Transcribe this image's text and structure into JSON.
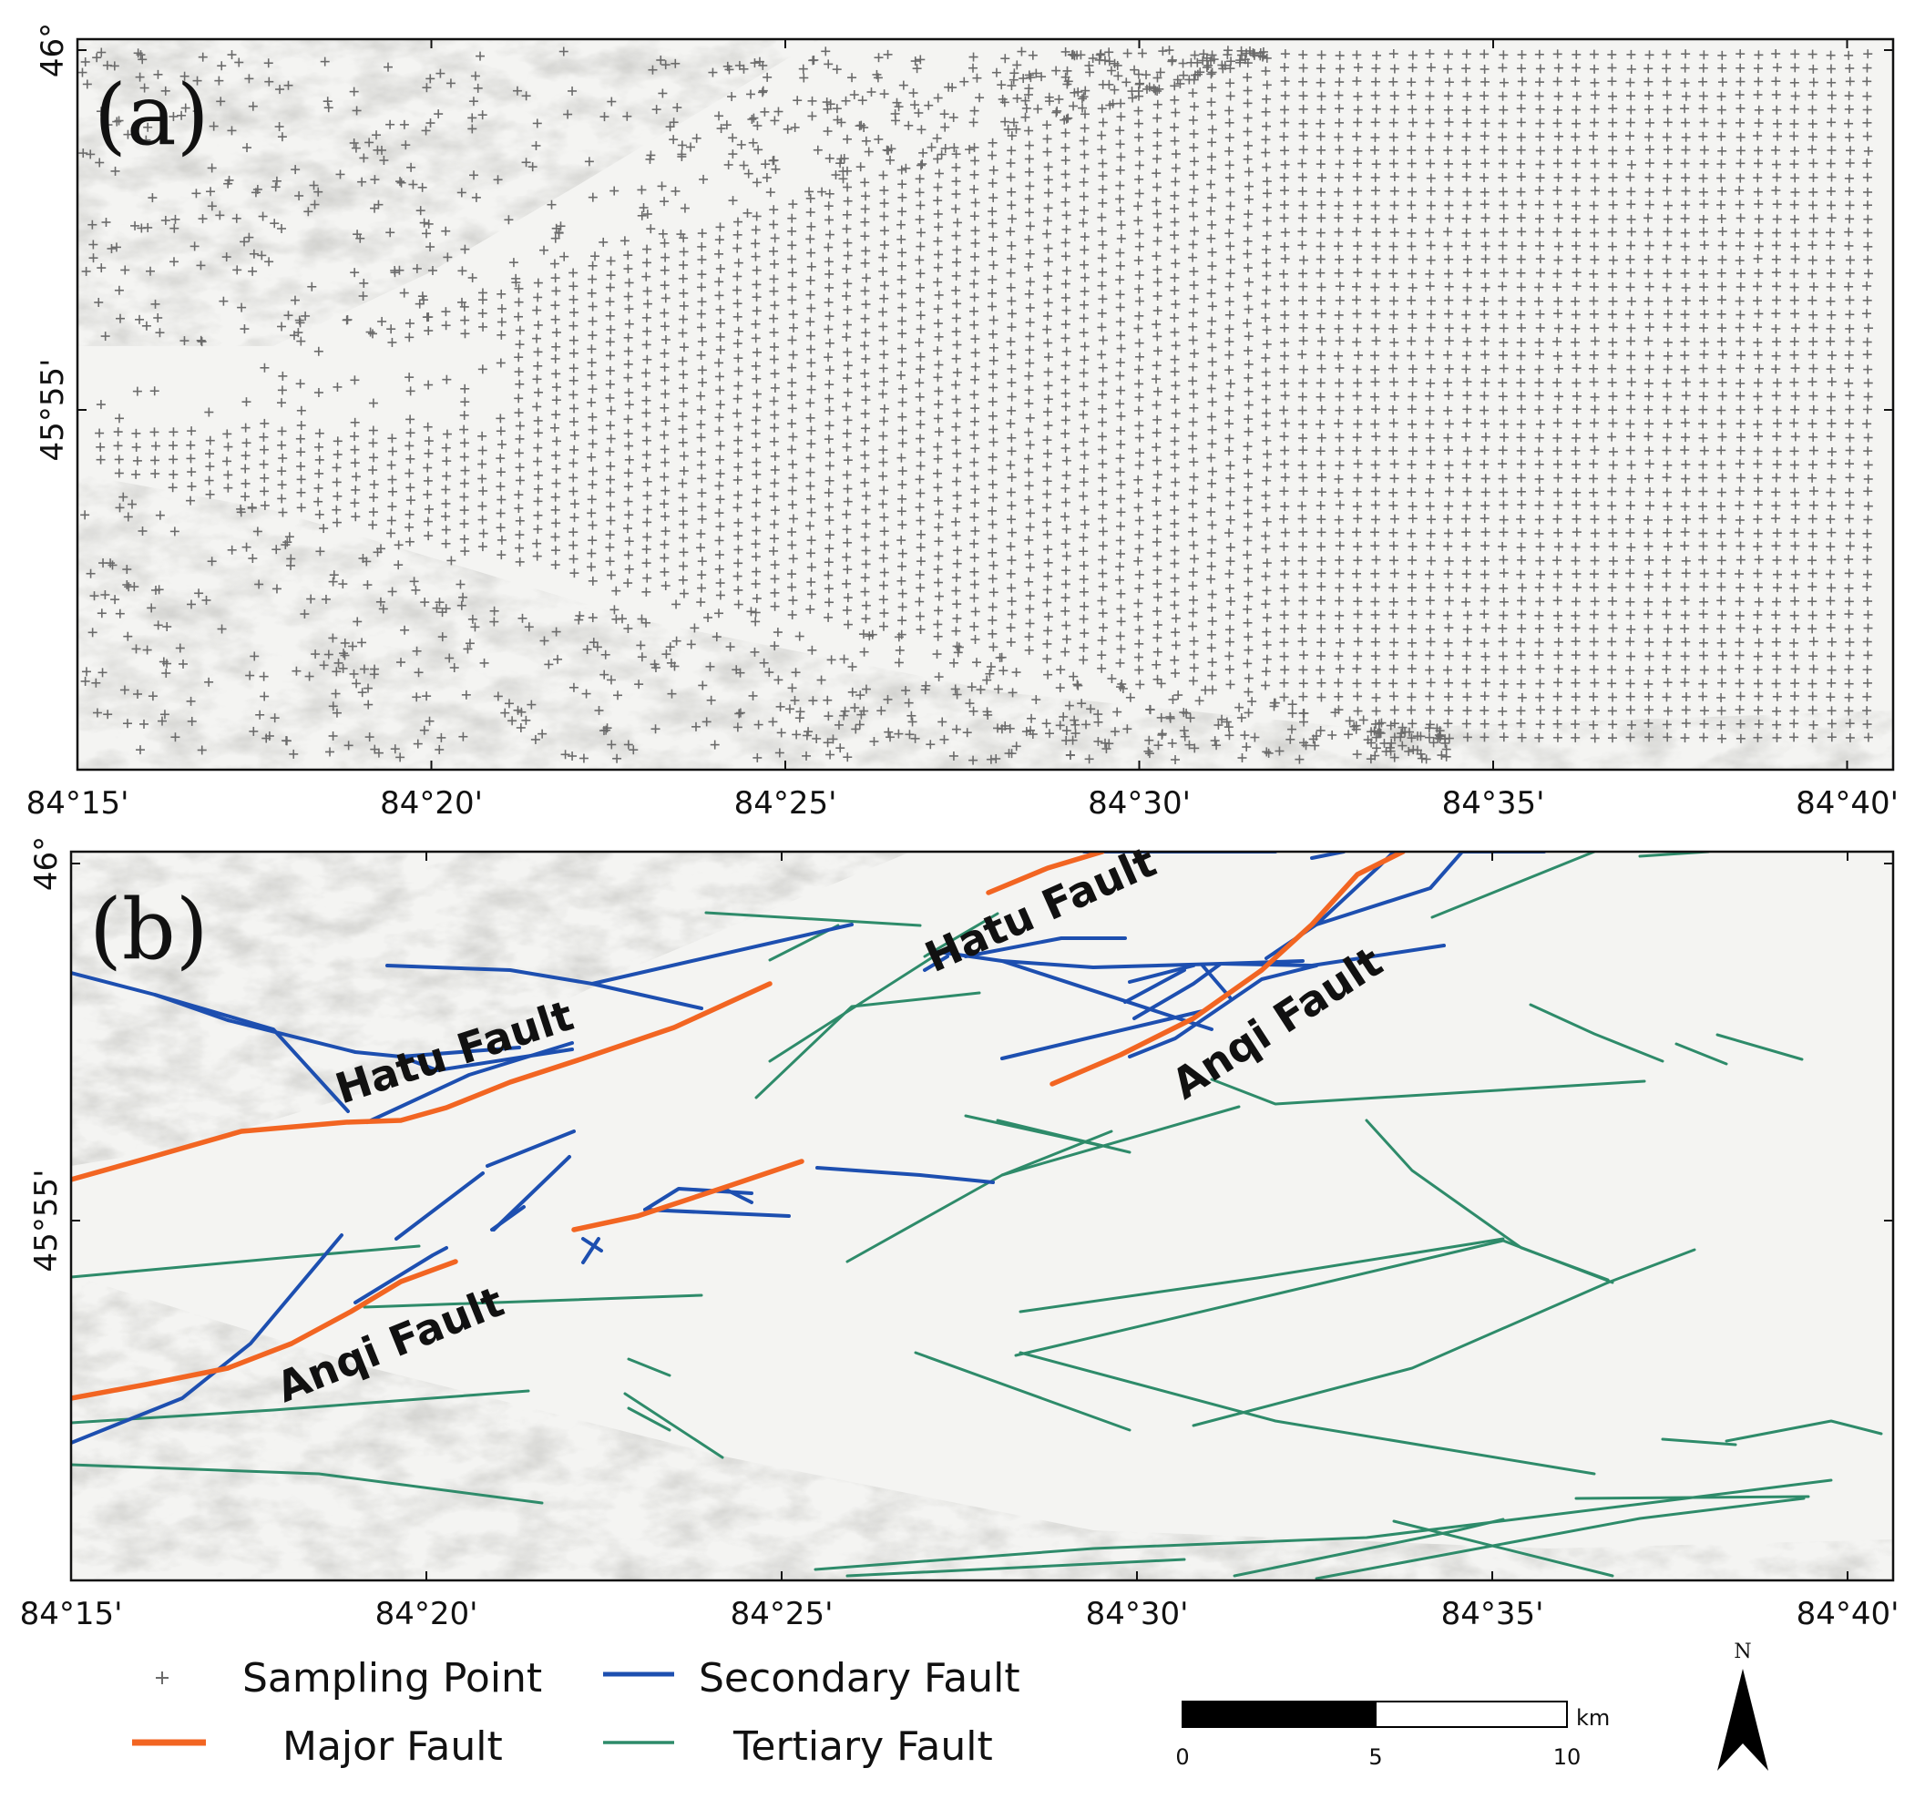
{
  "colors": {
    "major": "#F26522",
    "secondary": "#1D4FB0",
    "tertiary": "#2E8B6A",
    "sample": "#6b6b6b",
    "terrain_bg": "#f4f4f2"
  },
  "panels": [
    {
      "id": "a",
      "label": "(a)",
      "y_ticks": [
        "46°",
        "45°55'"
      ],
      "x_ticks": [
        "84°15'",
        "84°20'",
        "84°25'",
        "84°30'",
        "84°35'",
        "84°40'"
      ]
    },
    {
      "id": "b",
      "label": "(b)",
      "y_ticks": [
        "46°",
        "45°55'"
      ],
      "x_ticks": [
        "84°15'",
        "84°20'",
        "84°25'",
        "84°30'",
        "84°35'",
        "84°40'"
      ]
    }
  ],
  "fault_labels": [
    {
      "text": "Hatu Fault"
    },
    {
      "text": "Hatu Fault"
    },
    {
      "text": "Anqi Fault"
    },
    {
      "text": "Anqi Fault"
    }
  ],
  "legend": {
    "items": [
      {
        "key": "sampling",
        "label": "Sampling Point"
      },
      {
        "key": "secondary",
        "label": "Secondary Fault"
      },
      {
        "key": "major",
        "label": "Major Fault"
      },
      {
        "key": "tertiary",
        "label": "Tertiary Fault"
      }
    ]
  },
  "scale_bar": {
    "ticks": [
      "0",
      "5",
      "10"
    ],
    "unit": "km"
  },
  "north_arrow": {
    "label": "N",
    "icon": "north-arrow-icon"
  }
}
